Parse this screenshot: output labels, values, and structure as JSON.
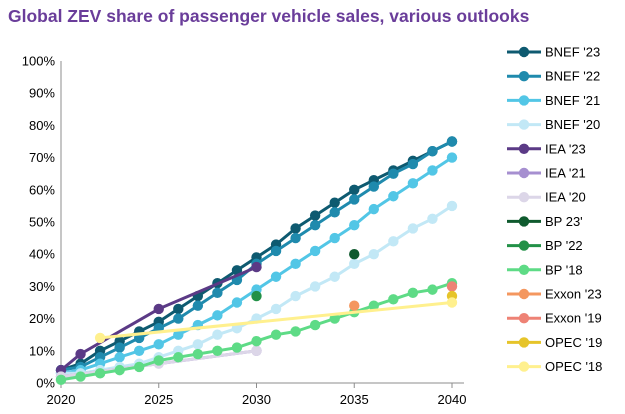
{
  "chart_data": {
    "type": "line",
    "title": "Global ZEV share of passenger vehicle sales, various outlooks",
    "xlabel": "",
    "ylabel": "",
    "xlim": [
      2020,
      2040
    ],
    "ylim": [
      0,
      100
    ],
    "x_ticks": [
      2020,
      2025,
      2030,
      2035,
      2040
    ],
    "y_ticks": [
      0,
      10,
      20,
      30,
      40,
      50,
      60,
      70,
      80,
      90,
      100
    ],
    "y_tick_format": "percent",
    "grid": false,
    "legend_position": "right",
    "series": [
      {
        "name": "BNEF '23",
        "color": "#0e5a70",
        "x": [
          2020,
          2021,
          2022,
          2023,
          2024,
          2025,
          2026,
          2027,
          2028,
          2029,
          2030,
          2031,
          2032,
          2033,
          2034,
          2035,
          2036,
          2037,
          2038,
          2039,
          2040
        ],
        "y": [
          4,
          6,
          10,
          13,
          16,
          19,
          23,
          27,
          31,
          35,
          39,
          43,
          48,
          52,
          56,
          60,
          63,
          66,
          69,
          72,
          75
        ]
      },
      {
        "name": "BNEF '22",
        "color": "#1f8aad",
        "x": [
          2020,
          2021,
          2022,
          2023,
          2024,
          2025,
          2026,
          2027,
          2028,
          2029,
          2030,
          2031,
          2032,
          2033,
          2034,
          2035,
          2036,
          2037,
          2038,
          2039,
          2040
        ],
        "y": [
          4,
          5,
          8,
          11,
          14,
          17,
          20,
          24,
          28,
          32,
          37,
          41,
          45,
          49,
          53,
          57,
          61,
          65,
          68,
          72,
          75
        ]
      },
      {
        "name": "BNEF '21",
        "color": "#52c6e6",
        "x": [
          2020,
          2021,
          2022,
          2023,
          2024,
          2025,
          2026,
          2027,
          2028,
          2029,
          2030,
          2031,
          2032,
          2033,
          2034,
          2035,
          2036,
          2037,
          2038,
          2039,
          2040
        ],
        "y": [
          3,
          4,
          6,
          8,
          10,
          12,
          15,
          18,
          21,
          25,
          29,
          33,
          37,
          41,
          45,
          49,
          54,
          58,
          62,
          66,
          70
        ]
      },
      {
        "name": "BNEF '20",
        "color": "#c2e8f6",
        "x": [
          2020,
          2021,
          2022,
          2023,
          2024,
          2025,
          2026,
          2027,
          2028,
          2029,
          2030,
          2031,
          2032,
          2033,
          2034,
          2035,
          2036,
          2037,
          2038,
          2039,
          2040
        ],
        "y": [
          3,
          3,
          4,
          5,
          6,
          8,
          10,
          12,
          15,
          17,
          20,
          23,
          27,
          30,
          33,
          37,
          40,
          44,
          48,
          51,
          55
        ]
      },
      {
        "name": "IEA '23",
        "color": "#5b3a86",
        "x": [
          2020,
          2021,
          2025,
          2030
        ],
        "y": [
          4,
          9,
          23,
          36
        ]
      },
      {
        "name": "IEA '21",
        "color": "#a68fd0",
        "x": [
          2020,
          2030
        ],
        "y": [
          2,
          10
        ]
      },
      {
        "name": "IEA '20",
        "color": "#dcd6e8",
        "x": [
          2020,
          2025,
          2030
        ],
        "y": [
          2,
          6,
          10
        ]
      },
      {
        "name": "BP 23'",
        "color": "#0f5a2e",
        "x": [
          2035
        ],
        "y": [
          40
        ]
      },
      {
        "name": "BP '22",
        "color": "#229147",
        "x": [
          2030
        ],
        "y": [
          27
        ]
      },
      {
        "name": "BP '18",
        "color": "#5edb86",
        "x": [
          2020,
          2021,
          2022,
          2023,
          2024,
          2025,
          2026,
          2027,
          2028,
          2029,
          2030,
          2031,
          2032,
          2033,
          2034,
          2035,
          2036,
          2037,
          2038,
          2039,
          2040
        ],
        "y": [
          1,
          2,
          3,
          4,
          5,
          7,
          8,
          9,
          10,
          11,
          13,
          15,
          16,
          18,
          20,
          22,
          24,
          26,
          28,
          29,
          31
        ]
      },
      {
        "name": "Exxon '23",
        "color": "#f4975f",
        "x": [
          2035
        ],
        "y": [
          24
        ]
      },
      {
        "name": "Exxon '19",
        "color": "#ee8275",
        "x": [
          2040
        ],
        "y": [
          30
        ]
      },
      {
        "name": "OPEC '19",
        "color": "#e6c42a",
        "x": [
          2040
        ],
        "y": [
          27
        ]
      },
      {
        "name": "OPEC '18",
        "color": "#fff08e",
        "x": [
          2022,
          2040
        ],
        "y": [
          14,
          25
        ]
      }
    ]
  }
}
